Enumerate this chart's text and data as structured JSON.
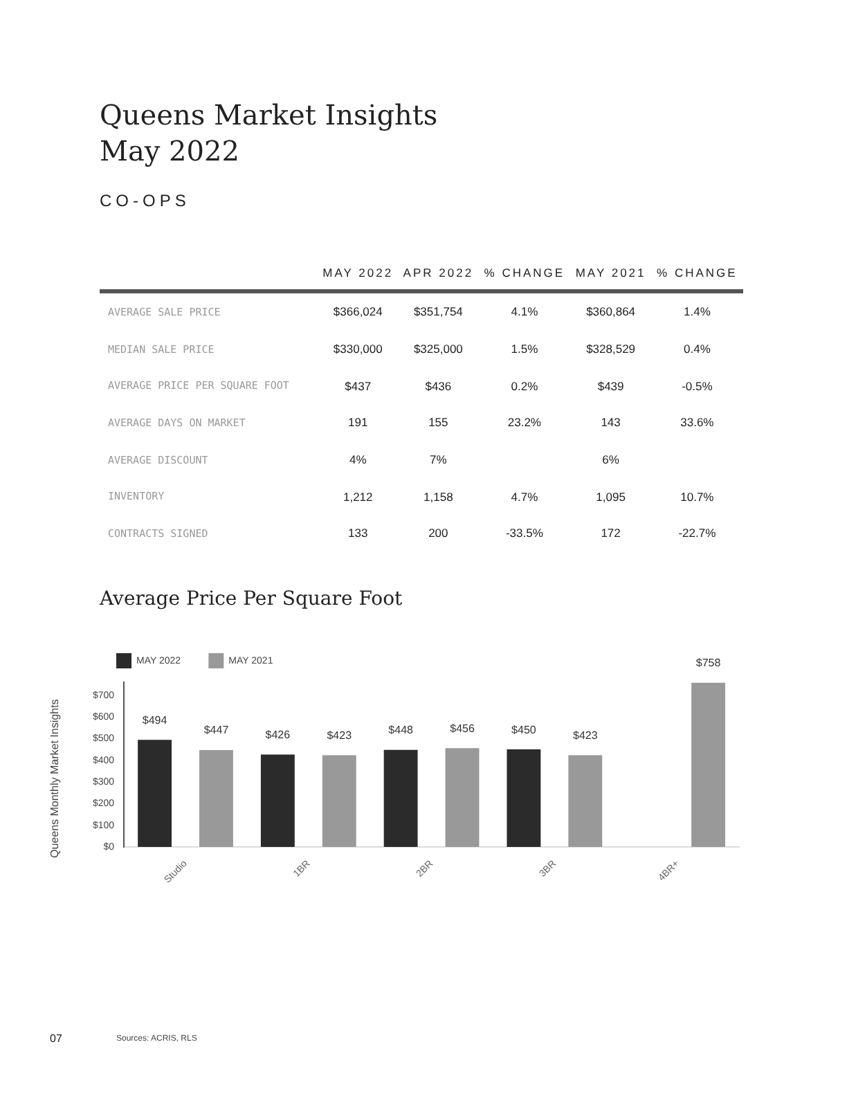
{
  "chart_data": [
    {
      "type": "other",
      "title": "Queens Market Insights\nMay 2022",
      "subtitle": "CO-OPS",
      "categories": [
        null,
        "MAY 2022",
        "APR 2022",
        "% CHANGE",
        "MAY 2021",
        "% CHANGE"
      ],
      "y_categories": [
        "AVERAGE SALE PRICE",
        "MEDIAN SALE PRICE",
        "AVERAGE PRICE PER SQUARE FOOT",
        "AVERAGE DAYS ON MARKET",
        "AVERAGE DISCOUNT",
        "INVENTORY",
        "CONTRACTS SIGNED"
      ],
      "cell_labels": [
        [
          "$366,024",
          "$351,754",
          "4.1%",
          "$360,864",
          "1.4%"
        ],
        [
          "$330,000",
          "$325,000",
          "1.5%",
          "$328,529",
          "0.4%"
        ],
        [
          "$437",
          "$436",
          "0.2%",
          "$439",
          "-0.5%"
        ],
        [
          "191",
          "155",
          "23.2%",
          "143",
          "33.6%"
        ],
        [
          "4%",
          "7%",
          null,
          "6%",
          null
        ],
        [
          "1,212",
          "1,158",
          "4.7%",
          "1,095",
          "10.7%"
        ],
        [
          "133",
          "200",
          "-33.5%",
          "172",
          "-22.7%"
        ]
      ],
      "annotations": [
        "Queens Monthly Market Insights",
        "07"
      ]
    },
    {
      "type": "bar",
      "title": "Average Price Per Square Foot",
      "categories": [
        "Studio",
        "1BR",
        "2BR",
        "3BR",
        "4BR+"
      ],
      "series": [
        {
          "name": "MAY 2022",
          "color": "#2b2b2b",
          "values": [
            494,
            426,
            448,
            450,
            null
          ],
          "value_labels": [
            "$494",
            "$426",
            "$448",
            "$450",
            null
          ]
        },
        {
          "name": "MAY 2021",
          "color": "#999999",
          "values": [
            447,
            423,
            456,
            423,
            758
          ],
          "value_labels": [
            "$447",
            "$423",
            "$456",
            "$423",
            "$758"
          ]
        }
      ],
      "ylim": [
        0,
        760
      ],
      "yticks": [
        {
          "value": 0,
          "label": "$0"
        },
        {
          "value": 100,
          "label": "$100"
        },
        {
          "value": 200,
          "label": "$200"
        },
        {
          "value": 300,
          "label": "$300"
        },
        {
          "value": 400,
          "label": "$400"
        },
        {
          "value": 500,
          "label": "$500"
        },
        {
          "value": 600,
          "label": "$600"
        },
        {
          "value": 700,
          "label": "$700"
        }
      ],
      "grid": false,
      "legend": "top left",
      "annotations": [
        "Sources: ACRIS, RLS"
      ]
    }
  ]
}
